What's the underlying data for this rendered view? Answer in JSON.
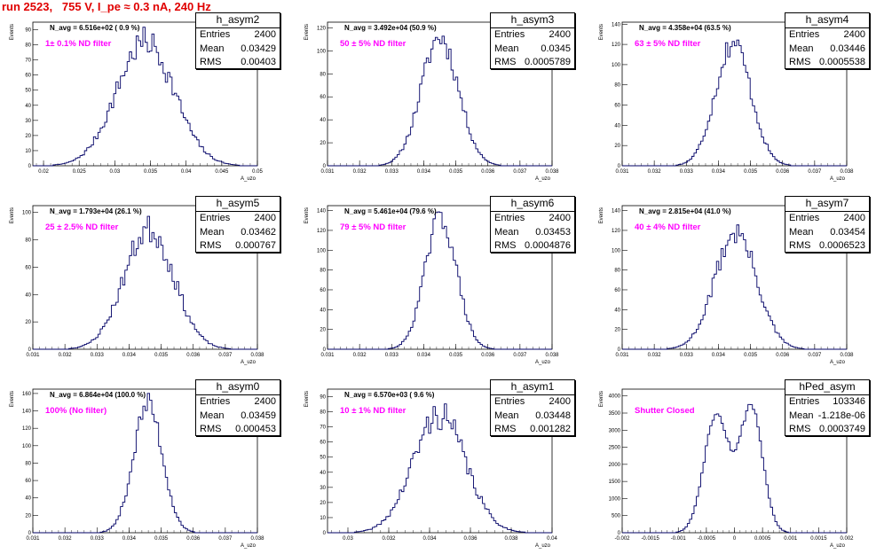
{
  "page": {
    "title": "run 2523,   755 V, I_pe ≈ 0.3 nA, 240 Hz"
  },
  "chart_data": [
    {
      "type": "histogram",
      "panel": "h_asym2",
      "title": "",
      "xlabel": "A_uzo",
      "ylabel": "Events",
      "xlim": [
        0.0185,
        0.05
      ],
      "ylim": [
        0,
        95
      ],
      "xticks": [
        "0.02",
        "0.025",
        "0.03",
        "0.035",
        "0.04",
        "0.045",
        "0.05"
      ],
      "xtick_values": [
        0.02,
        0.025,
        0.03,
        0.035,
        0.04,
        0.045,
        0.05
      ],
      "yticks": [
        0,
        10,
        20,
        30,
        40,
        50,
        60,
        70,
        80,
        90
      ],
      "annotation": "N_avg = 6.516e+02 ( 0.9 %)",
      "filter_label": "1± 0.1% ND filter",
      "stats": {
        "name": "h_asym2",
        "entries": "2400",
        "mean": "0.03429",
        "rms": "0.00403"
      },
      "shape": [
        {
          "mu": 0.03429,
          "sigma": 0.00403,
          "amp": 82
        }
      ],
      "noise": 0.12,
      "seed": 7
    },
    {
      "type": "histogram",
      "panel": "h_asym3",
      "title": "",
      "xlabel": "A_uzo",
      "ylabel": "Events",
      "xlim": [
        0.031,
        0.038
      ],
      "ylim": [
        0,
        125
      ],
      "xticks": [
        "0.031",
        "0.032",
        "0.033",
        "0.034",
        "0.035",
        "0.036",
        "0.037",
        "0.038"
      ],
      "xtick_values": [
        0.031,
        0.032,
        0.033,
        0.034,
        0.035,
        0.036,
        0.037,
        0.038
      ],
      "yticks": [
        0,
        20,
        40,
        60,
        80,
        100,
        120
      ],
      "annotation": "N_avg = 3.492e+04 (50.9 %)",
      "filter_label": "50 ± 5% ND filter",
      "stats": {
        "name": "h_asym3",
        "entries": "2400",
        "mean": "0.0345",
        "rms": "0.0005789"
      },
      "shape": [
        {
          "mu": 0.0345,
          "sigma": 0.00058,
          "amp": 112
        }
      ],
      "noise": 0.1,
      "seed": 11
    },
    {
      "type": "histogram",
      "panel": "h_asym4",
      "title": "",
      "xlabel": "A_uzo",
      "ylabel": "Events",
      "xlim": [
        0.031,
        0.038
      ],
      "ylim": [
        0,
        142
      ],
      "xticks": [
        "0.031",
        "0.032",
        "0.033",
        "0.034",
        "0.035",
        "0.036",
        "0.037",
        "0.038"
      ],
      "xtick_values": [
        0.031,
        0.032,
        0.033,
        0.034,
        0.035,
        0.036,
        0.037,
        0.038
      ],
      "yticks": [
        0,
        20,
        40,
        60,
        80,
        100,
        120,
        140
      ],
      "annotation": "N_avg = 4.358e+04 (63.5 %)",
      "filter_label": "63 ± 5% ND filter",
      "stats": {
        "name": "h_asym4",
        "entries": "2400",
        "mean": "0.03446",
        "rms": "0.0005538"
      },
      "shape": [
        {
          "mu": 0.03446,
          "sigma": 0.00055,
          "amp": 122
        }
      ],
      "noise": 0.1,
      "seed": 17
    },
    {
      "type": "histogram",
      "panel": "h_asym5",
      "title": "",
      "xlabel": "A_uzo",
      "ylabel": "Events",
      "xlim": [
        0.031,
        0.038
      ],
      "ylim": [
        0,
        105
      ],
      "xticks": [
        "0.031",
        "0.032",
        "0.033",
        "0.034",
        "0.035",
        "0.036",
        "0.037",
        "0.038"
      ],
      "xtick_values": [
        0.031,
        0.032,
        0.033,
        0.034,
        0.035,
        0.036,
        0.037,
        0.038
      ],
      "yticks": [
        0,
        20,
        40,
        60,
        80,
        100
      ],
      "annotation": "N_avg = 1.793e+04 (26.1 %)",
      "filter_label": "25 ± 2.5% ND filter",
      "stats": {
        "name": "h_asym5",
        "entries": "2400",
        "mean": "0.03462",
        "rms": "0.000767"
      },
      "shape": [
        {
          "mu": 0.03462,
          "sigma": 0.00077,
          "amp": 88
        }
      ],
      "noise": 0.12,
      "seed": 23
    },
    {
      "type": "histogram",
      "panel": "h_asym6",
      "title": "",
      "xlabel": "A_uzo",
      "ylabel": "Events",
      "xlim": [
        0.031,
        0.038
      ],
      "ylim": [
        0,
        145
      ],
      "xticks": [
        "0.031",
        "0.032",
        "0.033",
        "0.034",
        "0.035",
        "0.036",
        "0.037",
        "0.038"
      ],
      "xtick_values": [
        0.031,
        0.032,
        0.033,
        0.034,
        0.035,
        0.036,
        0.037,
        0.038
      ],
      "yticks": [
        0,
        20,
        40,
        60,
        80,
        100,
        120,
        140
      ],
      "annotation": "N_avg = 5.461e+04 (79.6 %)",
      "filter_label": "79 ± 5% ND filter",
      "stats": {
        "name": "h_asym6",
        "entries": "2400",
        "mean": "0.03453",
        "rms": "0.0004876"
      },
      "shape": [
        {
          "mu": 0.03453,
          "sigma": 0.00049,
          "amp": 133
        }
      ],
      "noise": 0.09,
      "seed": 29
    },
    {
      "type": "histogram",
      "panel": "h_asym7",
      "title": "",
      "xlabel": "A_uzo",
      "ylabel": "Events",
      "xlim": [
        0.031,
        0.038
      ],
      "ylim": [
        0,
        145
      ],
      "xticks": [
        "0.031",
        "0.032",
        "0.033",
        "0.034",
        "0.035",
        "0.036",
        "0.037",
        "0.038"
      ],
      "xtick_values": [
        0.031,
        0.032,
        0.033,
        0.034,
        0.035,
        0.036,
        0.037,
        0.038
      ],
      "yticks": [
        0,
        20,
        40,
        60,
        80,
        100,
        120,
        140
      ],
      "annotation": "N_avg = 2.815e+04 (41.0 %)",
      "filter_label": "40 ± 4% ND filter",
      "stats": {
        "name": "h_asym7",
        "entries": "2400",
        "mean": "0.03454",
        "rms": "0.0006523"
      },
      "shape": [
        {
          "mu": 0.03454,
          "sigma": 0.00065,
          "amp": 118
        }
      ],
      "noise": 0.11,
      "seed": 31
    },
    {
      "type": "histogram",
      "panel": "h_asym0",
      "title": "",
      "xlabel": "A_uzo",
      "ylabel": "Events",
      "xlim": [
        0.031,
        0.038
      ],
      "ylim": [
        0,
        165
      ],
      "xticks": [
        "0.031",
        "0.032",
        "0.033",
        "0.034",
        "0.035",
        "0.036",
        "0.037",
        "0.038"
      ],
      "xtick_values": [
        0.031,
        0.032,
        0.033,
        0.034,
        0.035,
        0.036,
        0.037,
        0.038
      ],
      "yticks": [
        0,
        20,
        40,
        60,
        80,
        100,
        120,
        140,
        160
      ],
      "annotation": "N_avg = 6.864e+04 (100.0 %)",
      "filter_label": "100% (No filter)",
      "stats": {
        "name": "h_asym0",
        "entries": "2400",
        "mean": "0.03459",
        "rms": "0.000453"
      },
      "shape": [
        {
          "mu": 0.03459,
          "sigma": 0.00045,
          "amp": 148
        }
      ],
      "noise": 0.09,
      "seed": 37
    },
    {
      "type": "histogram",
      "panel": "h_asym1",
      "title": "",
      "xlabel": "A_uzo",
      "ylabel": "Events",
      "xlim": [
        0.029,
        0.04
      ],
      "ylim": [
        0,
        95
      ],
      "xticks": [
        "0.03",
        "0.032",
        "0.034",
        "0.036",
        "0.038",
        "0.04"
      ],
      "xtick_values": [
        0.03,
        0.032,
        0.034,
        0.036,
        0.038,
        0.04
      ],
      "yticks": [
        0,
        10,
        20,
        30,
        40,
        50,
        60,
        70,
        80,
        90
      ],
      "annotation": "N_avg = 6.570e+03 ( 9.6 %)",
      "filter_label": "10 ± 1% ND filter",
      "stats": {
        "name": "h_asym1",
        "entries": "2400",
        "mean": "0.03448",
        "rms": "0.001282"
      },
      "shape": [
        {
          "mu": 0.03448,
          "sigma": 0.00128,
          "amp": 78
        }
      ],
      "noise": 0.13,
      "seed": 41
    },
    {
      "type": "histogram",
      "panel": "hPed_asym",
      "title": "",
      "xlabel": "A_uzo",
      "ylabel": "Events",
      "xlim": [
        -0.002,
        0.002
      ],
      "ylim": [
        0,
        4200
      ],
      "xticks": [
        "-0.002",
        "-0.0015",
        "-0.001",
        "-0.0005",
        "0",
        "0.0005",
        "0.001",
        "0.0015",
        "0.002"
      ],
      "xtick_values": [
        -0.002,
        -0.0015,
        -0.001,
        -0.0005,
        0,
        0.0005,
        0.001,
        0.0015,
        0.002
      ],
      "yticks": [
        0,
        500,
        1000,
        1500,
        2000,
        2500,
        3000,
        3500,
        4000
      ],
      "annotation": "",
      "filter_label": "Shutter Closed",
      "stats": {
        "name": "hPed_asym",
        "entries": "103346",
        "mean": "-1.218e-06",
        "rms": "0.0003749"
      },
      "shape": [
        {
          "mu": -0.00032,
          "sigma": 0.00022,
          "amp": 3500
        },
        {
          "mu": 0.0003,
          "sigma": 0.0002,
          "amp": 3700
        }
      ],
      "noise": 0.03,
      "seed": 53
    }
  ]
}
